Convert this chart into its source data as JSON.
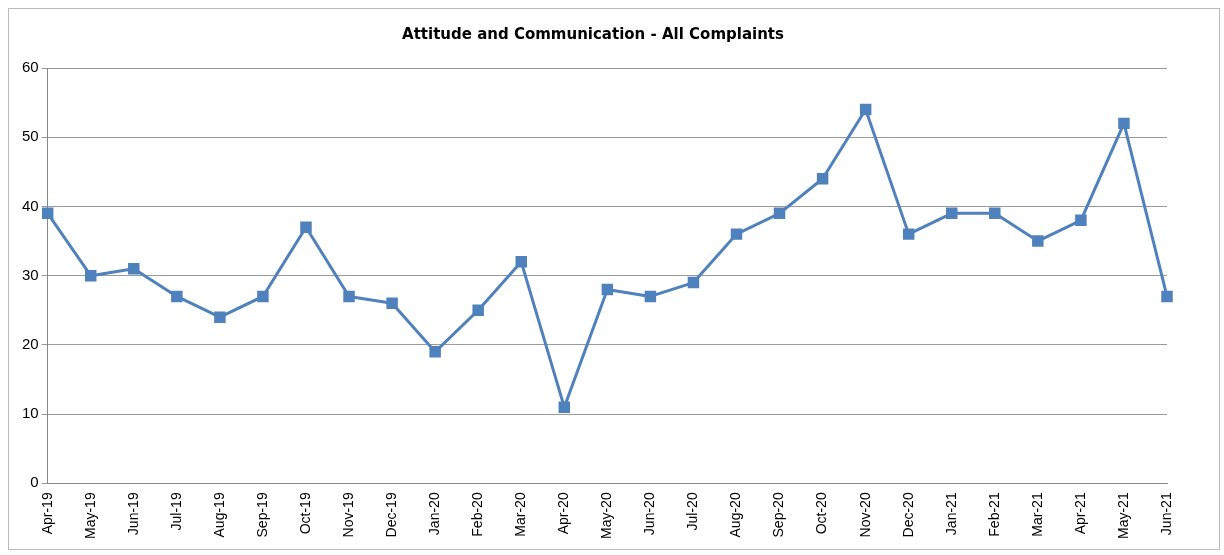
{
  "chart_data": {
    "type": "line",
    "title": "Attitude and Communication - All Complaints",
    "categories": [
      "Apr-19",
      "May-19",
      "Jun-19",
      "Jul-19",
      "Aug-19",
      "Sep-19",
      "Oct-19",
      "Nov-19",
      "Dec-19",
      "Jan-20",
      "Feb-20",
      "Mar-20",
      "Apr-20",
      "May-20",
      "Jun-20",
      "Jul-20",
      "Aug-20",
      "Sep-20",
      "Oct-20",
      "Nov-20",
      "Dec-20",
      "Jan-21",
      "Feb-21",
      "Mar-21",
      "Apr-21",
      "May-21",
      "Jun-21"
    ],
    "series": [
      {
        "color": "#4f81bd",
        "values": [
          39,
          30,
          31,
          27,
          24,
          27,
          37,
          27,
          26,
          19,
          25,
          32,
          11,
          28,
          27,
          29,
          36,
          39,
          44,
          54,
          36,
          39,
          39,
          35,
          38,
          52,
          27
        ]
      }
    ],
    "ylim": [
      0,
      60
    ],
    "yticks": [
      0,
      10,
      20,
      30,
      40,
      50,
      60
    ],
    "grid": "y",
    "legend": false,
    "marker": "square",
    "line_style": "solid"
  }
}
